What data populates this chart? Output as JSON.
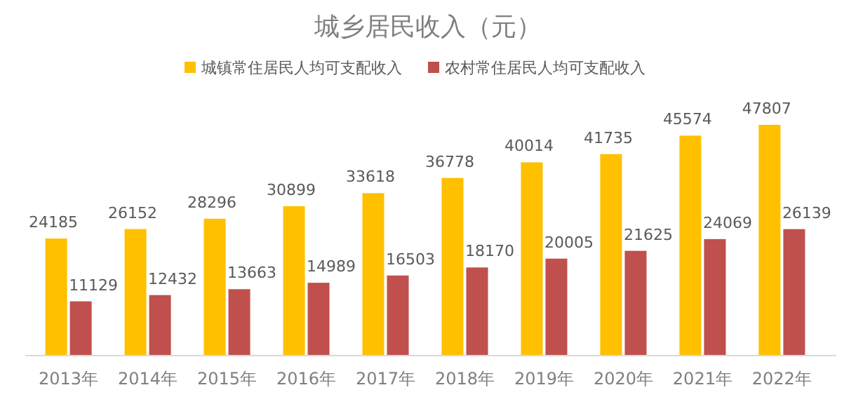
{
  "chart_data": {
    "type": "bar",
    "title": "城乡居民收入（元）",
    "categories": [
      "2013年",
      "2014年",
      "2015年",
      "2016年",
      "2017年",
      "2018年",
      "2019年",
      "2020年",
      "2021年",
      "2022年"
    ],
    "series": [
      {
        "name": "城镇常住居民人均可支配收入",
        "color": "#ffc000",
        "values": [
          24185,
          26152,
          28296,
          30899,
          33618,
          36778,
          40014,
          41735,
          45574,
          47807
        ]
      },
      {
        "name": "农村常住居民人均可支配收入",
        "color": "#c0504d",
        "values": [
          11129,
          12432,
          13663,
          14989,
          16503,
          18170,
          20005,
          21625,
          24069,
          26139
        ]
      }
    ],
    "data_labels": true,
    "legend": "top"
  }
}
